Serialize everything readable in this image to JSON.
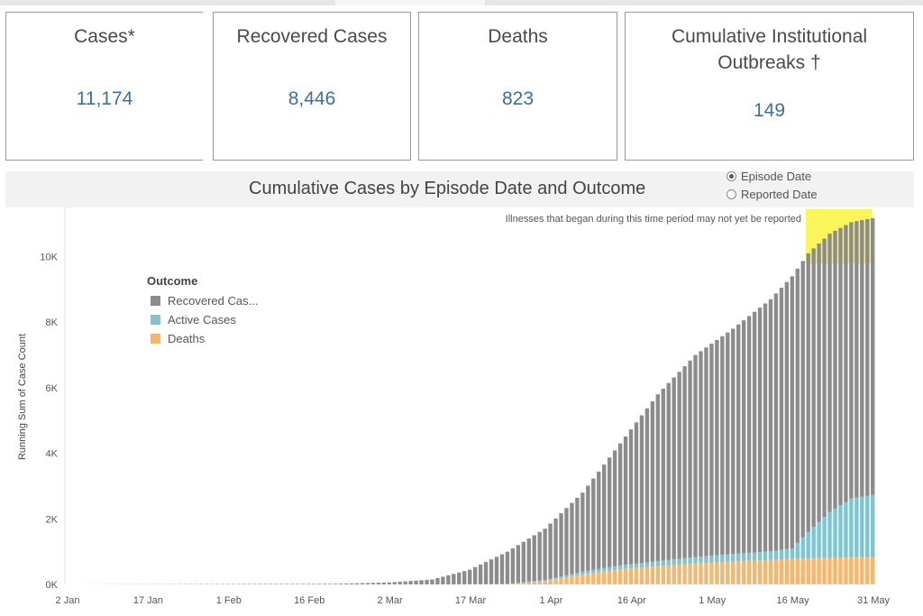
{
  "kpis": [
    {
      "label": "Cases*",
      "value": "11,174"
    },
    {
      "label": "Recovered Cases",
      "value": "8,446"
    },
    {
      "label": "Deaths",
      "value": "823"
    },
    {
      "label_line1": "Cumulative Institutional",
      "label_line2": "Outbreaks †",
      "value": "149"
    }
  ],
  "date_toggle": {
    "options": [
      {
        "label": "Episode Date",
        "selected": true
      },
      {
        "label": "Reported Date",
        "selected": false
      }
    ]
  },
  "colors": {
    "recovered": "#8c8c8c",
    "active": "#7fc4cf",
    "deaths": "#f7b66e",
    "highlight": "#fbf55c",
    "kpi_value": "#3d6e9e"
  },
  "chart_data": {
    "type": "bar",
    "stacked": true,
    "title": "Cumulative Cases by Episode Date and Outcome",
    "ylabel": "Running Sum of Case Count",
    "xlabel": "",
    "ylim": [
      0,
      11500
    ],
    "yticks": [
      0,
      2000,
      4000,
      6000,
      8000,
      10000
    ],
    "ytick_labels": [
      "0K",
      "2K",
      "4K",
      "6K",
      "8K",
      "10K"
    ],
    "x_range": [
      "2020-01-02",
      "2020-05-31"
    ],
    "xtick_labels": [
      "2 Jan",
      "17 Jan",
      "1 Feb",
      "16 Feb",
      "2 Mar",
      "17 Mar",
      "1 Apr",
      "16 Apr",
      "1 May",
      "16 May",
      "31 May"
    ],
    "legend": {
      "title": "Outcome",
      "position": "top-left",
      "entries": [
        "Recovered Cas...",
        "Active Cases",
        "Deaths"
      ]
    },
    "annotation": {
      "text": "Illnesses that began during this time period may not yet be reported",
      "from": "2020-05-18",
      "to": "2020-05-31"
    },
    "anchors": {
      "dates": [
        "2020-01-02",
        "2020-02-21",
        "2020-03-02",
        "2020-03-10",
        "2020-03-17",
        "2020-03-24",
        "2020-03-31",
        "2020-04-07",
        "2020-04-14",
        "2020-04-21",
        "2020-04-28",
        "2020-05-05",
        "2020-05-12",
        "2020-05-16",
        "2020-05-19",
        "2020-05-23",
        "2020-05-27",
        "2020-05-31"
      ],
      "total": [
        0,
        20,
        60,
        150,
        450,
        1000,
        1700,
        2800,
        4300,
        5800,
        7000,
        7800,
        8700,
        9400,
        10100,
        10700,
        11050,
        11174
      ],
      "active": [
        0,
        0,
        0,
        0,
        0,
        0,
        40,
        90,
        120,
        150,
        200,
        230,
        260,
        320,
        800,
        1400,
        1800,
        1905
      ],
      "deaths": [
        0,
        0,
        0,
        0,
        2,
        15,
        100,
        300,
        460,
        560,
        640,
        700,
        750,
        780,
        800,
        810,
        818,
        823
      ]
    }
  }
}
